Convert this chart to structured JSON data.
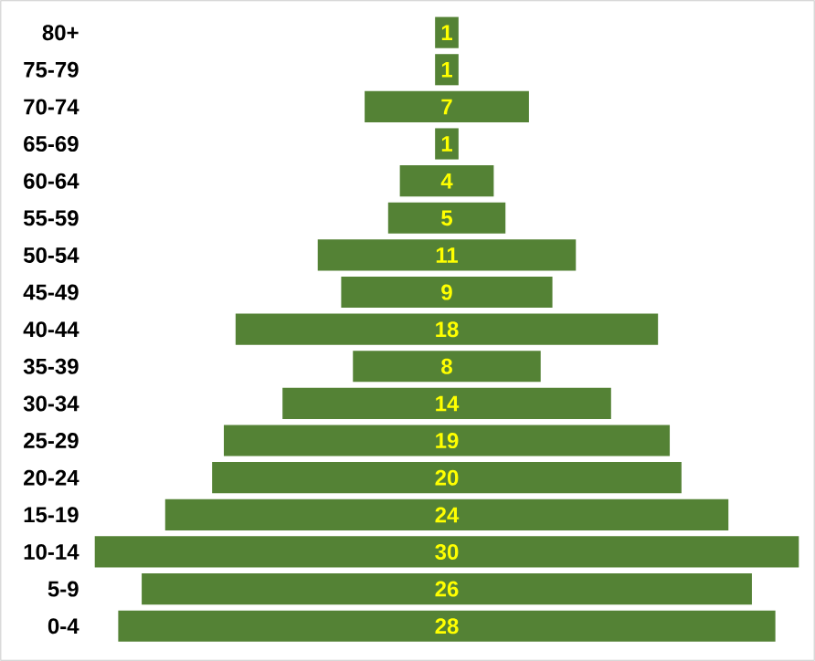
{
  "chart_data": {
    "type": "other",
    "data_labels": true,
    "color": "#548235",
    "categories": [
      "80+",
      "75-79",
      "70-74",
      "65-69",
      "60-64",
      "55-59",
      "50-54",
      "45-49",
      "40-44",
      "35-39",
      "30-34",
      "25-29",
      "20-24",
      "15-19",
      "10-14",
      "5-9",
      "0-4"
    ],
    "values": [
      1,
      1,
      7,
      1,
      4,
      5,
      11,
      9,
      18,
      8,
      14,
      19,
      20,
      24,
      30,
      26,
      28
    ]
  }
}
